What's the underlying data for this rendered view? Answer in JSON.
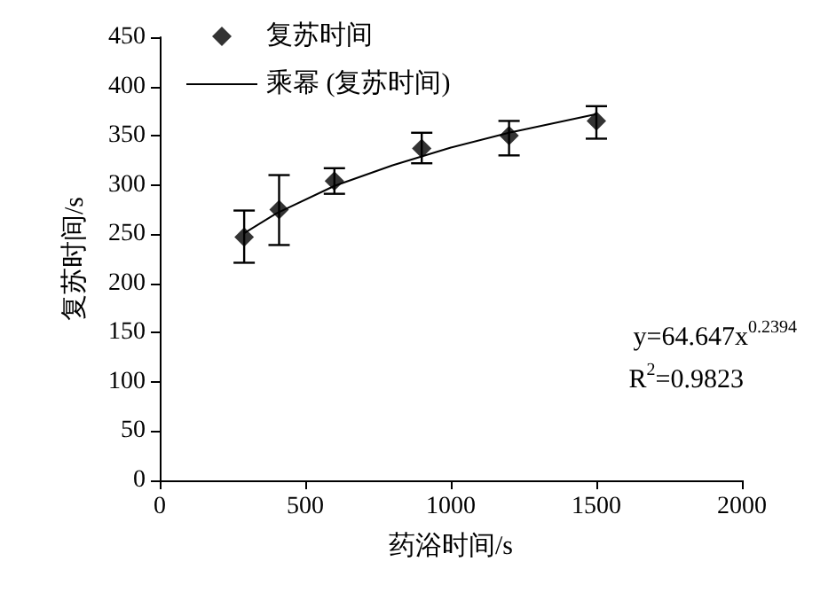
{
  "chart_data": {
    "type": "scatter",
    "xlabel": "药浴时间/s",
    "ylabel": "复苏时间/s",
    "xlim": [
      0,
      2000
    ],
    "xticks": [
      0,
      500,
      1000,
      1500,
      2000
    ],
    "ylim": [
      0,
      450
    ],
    "yticks": [
      0,
      50,
      100,
      150,
      200,
      250,
      300,
      350,
      400,
      450
    ],
    "grid": false,
    "legend": "top left",
    "marker": "diamond",
    "series": [
      {
        "name": "复苏时间",
        "type": "scatter",
        "color": "#000000",
        "x": [
          290,
          410,
          600,
          900,
          1200,
          1500
        ],
        "values": [
          247,
          275,
          304,
          337,
          350,
          365
        ],
        "errors": [
          [
            221,
            274
          ],
          [
            239,
            310
          ],
          [
            291,
            317
          ],
          [
            322,
            353
          ],
          [
            330,
            365
          ],
          [
            347,
            380
          ]
        ]
      },
      {
        "name": "乘幂 (复苏时间)",
        "type": "line",
        "color": "#000000",
        "marker": "none",
        "line_style": "solid",
        "x": [
          290,
          400,
          600,
          800,
          1000,
          1200,
          1500
        ],
        "values": [
          251,
          271,
          299,
          320,
          338,
          353,
          372
        ]
      }
    ],
    "annotations": [
      "y=64.647x$^{0.2394}$",
      "R$^{2}$=0.9823"
    ]
  }
}
